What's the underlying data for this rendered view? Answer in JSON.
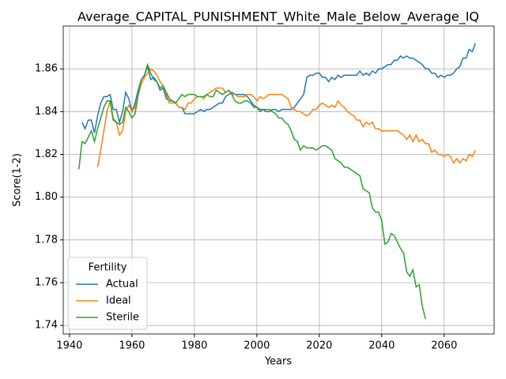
{
  "chart_data": {
    "type": "line",
    "title": "Average_CAPITAL_PUNISHMENT_White_Male_Below_Average_IQ",
    "x_label": "Years",
    "y_label": "Score(1-2)",
    "xlim": [
      1938,
      2076
    ],
    "ylim": [
      1.736,
      1.88
    ],
    "xticks": [
      1940,
      1960,
      1980,
      2000,
      2020,
      2040,
      2060
    ],
    "yticks": [
      1.74,
      1.76,
      1.78,
      {
        "value": 1.8,
        "label": "1.80"
      },
      1.82,
      1.84,
      1.86
    ],
    "grid": true,
    "legend": "lower left",
    "legend_title": "Fertility",
    "series": [
      {
        "name": "Actual",
        "color": "#1f77b4",
        "x": [
          1944,
          1945,
          1946,
          1947,
          1948,
          1949,
          1950,
          1951,
          1952,
          1953,
          1954,
          1955,
          1956,
          1957,
          1958,
          1959,
          1960,
          1961,
          1962,
          1963,
          1964,
          1965,
          1966,
          1967,
          1968,
          1969,
          1970,
          1971,
          1972,
          1973,
          1974,
          1975,
          1976,
          1977,
          1978,
          1979,
          1980,
          1981,
          1982,
          1983,
          1984,
          1985,
          1986,
          1987,
          1988,
          1989,
          1990,
          1991,
          1992,
          1993,
          1994,
          1995,
          1996,
          1997,
          1998,
          1999,
          2000,
          2001,
          2002,
          2003,
          2004,
          2005,
          2006,
          2007,
          2008,
          2009,
          2010,
          2011,
          2012,
          2013,
          2014,
          2015,
          2016,
          2017,
          2018,
          2019,
          2020,
          2021,
          2022,
          2023,
          2024,
          2025,
          2026,
          2027,
          2028,
          2029,
          2030,
          2031,
          2032,
          2033,
          2034,
          2035,
          2036,
          2037,
          2038,
          2039,
          2040,
          2041,
          2042,
          2043,
          2044,
          2045,
          2046,
          2047,
          2048,
          2049,
          2050,
          2051,
          2052,
          2053,
          2054,
          2055,
          2056,
          2057,
          2058,
          2059,
          2060,
          2061,
          2062,
          2063,
          2064,
          2065,
          2066,
          2067,
          2068,
          2069,
          2070
        ],
        "values": [
          1.835,
          1.832,
          1.836,
          1.836,
          1.83,
          1.838,
          1.844,
          1.847,
          1.847,
          1.848,
          1.841,
          1.841,
          1.835,
          1.84,
          1.849,
          1.846,
          1.84,
          1.844,
          1.85,
          1.855,
          1.857,
          1.861,
          1.855,
          1.856,
          1.854,
          1.85,
          1.851,
          1.846,
          1.845,
          1.845,
          1.844,
          1.842,
          1.842,
          1.839,
          1.839,
          1.839,
          1.839,
          1.84,
          1.841,
          1.84,
          1.841,
          1.841,
          1.842,
          1.843,
          1.844,
          1.844,
          1.847,
          1.848,
          1.849,
          1.848,
          1.848,
          1.848,
          1.848,
          1.847,
          1.845,
          1.843,
          1.842,
          1.841,
          1.841,
          1.84,
          1.84,
          1.841,
          1.841,
          1.84,
          1.841,
          1.841,
          1.841,
          1.841,
          1.842,
          1.844,
          1.846,
          1.848,
          1.856,
          1.857,
          1.857,
          1.858,
          1.858,
          1.856,
          1.856,
          1.854,
          1.856,
          1.855,
          1.857,
          1.856,
          1.857,
          1.857,
          1.857,
          1.857,
          1.857,
          1.859,
          1.857,
          1.858,
          1.857,
          1.859,
          1.858,
          1.86,
          1.86,
          1.861,
          1.862,
          1.862,
          1.864,
          1.864,
          1.866,
          1.865,
          1.866,
          1.865,
          1.865,
          1.864,
          1.863,
          1.862,
          1.86,
          1.86,
          1.858,
          1.858,
          1.856,
          1.857,
          1.856,
          1.857,
          1.857,
          1.858,
          1.86,
          1.861,
          1.865,
          1.865,
          1.869,
          1.868,
          1.872
        ]
      },
      {
        "name": "Ideal",
        "color": "#ff7f0e",
        "x": [
          1949,
          1950,
          1951,
          1952,
          1953,
          1954,
          1955,
          1956,
          1957,
          1958,
          1959,
          1960,
          1961,
          1962,
          1963,
          1964,
          1965,
          1966,
          1967,
          1968,
          1969,
          1970,
          1971,
          1972,
          1973,
          1974,
          1975,
          1976,
          1977,
          1978,
          1979,
          1980,
          1981,
          1982,
          1983,
          1984,
          1985,
          1986,
          1987,
          1988,
          1989,
          1990,
          1991,
          1992,
          1993,
          1994,
          1995,
          1996,
          1997,
          1998,
          1999,
          2000,
          2001,
          2002,
          2003,
          2004,
          2005,
          2006,
          2007,
          2008,
          2009,
          2010,
          2011,
          2012,
          2013,
          2014,
          2015,
          2016,
          2017,
          2018,
          2019,
          2020,
          2021,
          2022,
          2023,
          2024,
          2025,
          2026,
          2027,
          2028,
          2029,
          2030,
          2031,
          2032,
          2033,
          2034,
          2035,
          2036,
          2037,
          2038,
          2039,
          2040,
          2041,
          2042,
          2043,
          2044,
          2045,
          2046,
          2047,
          2048,
          2049,
          2050,
          2051,
          2052,
          2053,
          2054,
          2055,
          2056,
          2057,
          2058,
          2059,
          2060,
          2061,
          2062,
          2063,
          2064,
          2065,
          2066,
          2067,
          2068,
          2069,
          2070
        ],
        "values": [
          1.814,
          1.822,
          1.831,
          1.84,
          1.845,
          1.837,
          1.835,
          1.829,
          1.831,
          1.84,
          1.843,
          1.84,
          1.842,
          1.848,
          1.853,
          1.856,
          1.858,
          1.86,
          1.859,
          1.857,
          1.854,
          1.852,
          1.848,
          1.844,
          1.844,
          1.844,
          1.842,
          1.842,
          1.841,
          1.844,
          1.844,
          1.846,
          1.847,
          1.847,
          1.846,
          1.848,
          1.849,
          1.85,
          1.851,
          1.851,
          1.851,
          1.849,
          1.85,
          1.848,
          1.848,
          1.847,
          1.847,
          1.847,
          1.848,
          1.848,
          1.847,
          1.845,
          1.847,
          1.846,
          1.847,
          1.848,
          1.848,
          1.848,
          1.848,
          1.848,
          1.847,
          1.846,
          1.842,
          1.841,
          1.84,
          1.84,
          1.839,
          1.838,
          1.839,
          1.841,
          1.841,
          1.843,
          1.844,
          1.843,
          1.842,
          1.843,
          1.842,
          1.845,
          1.843,
          1.842,
          1.84,
          1.839,
          1.838,
          1.836,
          1.836,
          1.833,
          1.835,
          1.834,
          1.835,
          1.832,
          1.832,
          1.831,
          1.831,
          1.831,
          1.831,
          1.831,
          1.831,
          1.83,
          1.829,
          1.827,
          1.829,
          1.826,
          1.829,
          1.826,
          1.827,
          1.825,
          1.825,
          1.821,
          1.822,
          1.82,
          1.82,
          1.819,
          1.82,
          1.819,
          1.816,
          1.818,
          1.816,
          1.818,
          1.817,
          1.82,
          1.819,
          1.822
        ]
      },
      {
        "name": "Sterile",
        "color": "#2ca02c",
        "x": [
          1943,
          1944,
          1945,
          1946,
          1947,
          1948,
          1949,
          1950,
          1951,
          1952,
          1953,
          1954,
          1955,
          1956,
          1957,
          1958,
          1959,
          1960,
          1961,
          1962,
          1963,
          1964,
          1965,
          1966,
          1967,
          1968,
          1969,
          1970,
          1971,
          1972,
          1973,
          1974,
          1975,
          1976,
          1977,
          1978,
          1979,
          1980,
          1981,
          1982,
          1983,
          1984,
          1985,
          1986,
          1987,
          1988,
          1989,
          1990,
          1991,
          1992,
          1993,
          1994,
          1995,
          1996,
          1997,
          1998,
          1999,
          2000,
          2001,
          2002,
          2003,
          2004,
          2005,
          2006,
          2007,
          2008,
          2009,
          2010,
          2011,
          2012,
          2013,
          2014,
          2015,
          2016,
          2017,
          2018,
          2019,
          2020,
          2021,
          2022,
          2023,
          2024,
          2025,
          2026,
          2027,
          2028,
          2029,
          2030,
          2031,
          2032,
          2033,
          2034,
          2035,
          2036,
          2037,
          2038,
          2039,
          2040,
          2041,
          2042,
          2043,
          2044,
          2045,
          2046,
          2047,
          2048,
          2049,
          2050,
          2051,
          2052,
          2053,
          2054
        ],
        "values": [
          1.813,
          1.826,
          1.825,
          1.828,
          1.831,
          1.826,
          1.832,
          1.837,
          1.842,
          1.845,
          1.845,
          1.836,
          1.835,
          1.834,
          1.835,
          1.842,
          1.84,
          1.837,
          1.839,
          1.848,
          1.855,
          1.857,
          1.862,
          1.858,
          1.855,
          1.854,
          1.851,
          1.852,
          1.849,
          1.846,
          1.845,
          1.844,
          1.846,
          1.848,
          1.847,
          1.848,
          1.848,
          1.848,
          1.847,
          1.847,
          1.847,
          1.848,
          1.847,
          1.847,
          1.85,
          1.849,
          1.848,
          1.849,
          1.85,
          1.848,
          1.845,
          1.844,
          1.844,
          1.845,
          1.845,
          1.844,
          1.842,
          1.842,
          1.84,
          1.841,
          1.841,
          1.841,
          1.84,
          1.839,
          1.837,
          1.837,
          1.835,
          1.834,
          1.831,
          1.827,
          1.826,
          1.822,
          1.824,
          1.823,
          1.823,
          1.823,
          1.822,
          1.823,
          1.824,
          1.824,
          1.823,
          1.822,
          1.818,
          1.817,
          1.816,
          1.814,
          1.814,
          1.813,
          1.812,
          1.811,
          1.81,
          1.804,
          1.803,
          1.802,
          1.795,
          1.793,
          1.793,
          1.789,
          1.778,
          1.779,
          1.783,
          1.782,
          1.779,
          1.776,
          1.774,
          1.765,
          1.763,
          1.766,
          1.758,
          1.759,
          1.749,
          1.743
        ]
      }
    ]
  }
}
